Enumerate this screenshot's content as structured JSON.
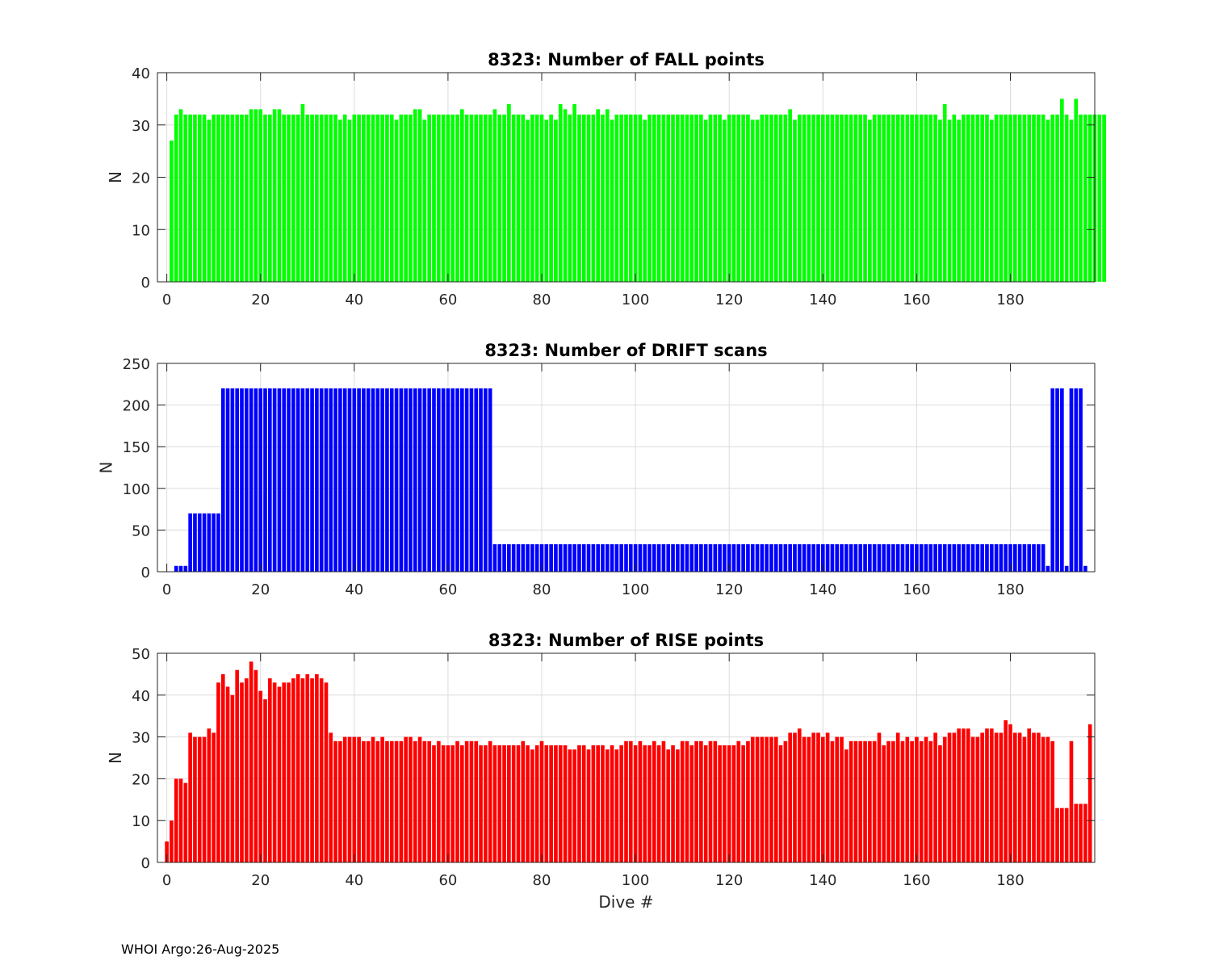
{
  "footer": "WHOI Argo:26-Aug-2025",
  "chart_data": [
    {
      "type": "bar",
      "title": "8323: Number of FALL points",
      "xlabel": "",
      "ylabel": "N",
      "xlim": [
        -2,
        198
      ],
      "ylim": [
        0,
        40
      ],
      "xticks": [
        0,
        20,
        40,
        60,
        80,
        100,
        120,
        140,
        160,
        180
      ],
      "yticks": [
        0,
        10,
        20,
        30,
        40
      ],
      "grid": true,
      "color": "#00ff00",
      "x_start": 1,
      "values": [
        27,
        32,
        33,
        32,
        32,
        32,
        32,
        32,
        31,
        32,
        32,
        32,
        32,
        32,
        32,
        32,
        32,
        33,
        33,
        33,
        32,
        32,
        33,
        33,
        32,
        32,
        32,
        32,
        34,
        32,
        32,
        32,
        32,
        32,
        32,
        32,
        31,
        32,
        31,
        32,
        32,
        32,
        32,
        32,
        32,
        32,
        32,
        32,
        31,
        32,
        32,
        32,
        33,
        33,
        31,
        32,
        32,
        32,
        32,
        32,
        32,
        32,
        33,
        32,
        32,
        32,
        32,
        32,
        32,
        33,
        32,
        32,
        34,
        32,
        32,
        32,
        31,
        32,
        32,
        32,
        31,
        32,
        31,
        34,
        33,
        32,
        34,
        32,
        32,
        32,
        32,
        33,
        32,
        33,
        31,
        32,
        32,
        32,
        32,
        32,
        32,
        31,
        32,
        32,
        32,
        32,
        32,
        32,
        32,
        32,
        32,
        32,
        32,
        32,
        31,
        32,
        32,
        32,
        31,
        32,
        32,
        32,
        32,
        32,
        31,
        31,
        32,
        32,
        32,
        32,
        32,
        32,
        33,
        31,
        32,
        32,
        32,
        32,
        32,
        32,
        32,
        32,
        32,
        32,
        32,
        32,
        32,
        32,
        32,
        31,
        32,
        32,
        32,
        32,
        32,
        32,
        32,
        32,
        32,
        32,
        32,
        32,
        32,
        32,
        31,
        34,
        31,
        32,
        31,
        32,
        32,
        32,
        32,
        32,
        32,
        31,
        32,
        32,
        32,
        32,
        32,
        32,
        32,
        32,
        32,
        32,
        32,
        31,
        32,
        32,
        35,
        32,
        31,
        35,
        32,
        32,
        32,
        32,
        32,
        32
      ]
    },
    {
      "type": "bar",
      "title": "8323: Number of DRIFT scans",
      "xlabel": "",
      "ylabel": "N",
      "xlim": [
        -2,
        198
      ],
      "ylim": [
        0,
        250
      ],
      "xticks": [
        0,
        20,
        40,
        60,
        80,
        100,
        120,
        140,
        160,
        180
      ],
      "yticks": [
        0,
        50,
        100,
        150,
        200,
        250
      ],
      "grid": true,
      "color": "#0000ff",
      "x_start": 1,
      "values": [
        0,
        7,
        7,
        7,
        70,
        70,
        70,
        70,
        70,
        70,
        70,
        220,
        220,
        220,
        220,
        220,
        220,
        220,
        220,
        220,
        220,
        220,
        220,
        220,
        220,
        220,
        220,
        220,
        220,
        220,
        220,
        220,
        220,
        220,
        220,
        220,
        220,
        220,
        220,
        220,
        220,
        220,
        220,
        220,
        220,
        220,
        220,
        220,
        220,
        220,
        220,
        220,
        220,
        220,
        220,
        220,
        220,
        220,
        220,
        220,
        220,
        220,
        220,
        220,
        220,
        220,
        220,
        220,
        220,
        33,
        33,
        33,
        33,
        33,
        33,
        33,
        33,
        33,
        33,
        33,
        33,
        33,
        33,
        33,
        33,
        33,
        33,
        33,
        33,
        33,
        33,
        33,
        33,
        33,
        33,
        33,
        33,
        33,
        33,
        33,
        33,
        33,
        33,
        33,
        33,
        33,
        33,
        33,
        33,
        33,
        33,
        33,
        33,
        33,
        33,
        33,
        33,
        33,
        33,
        33,
        33,
        33,
        33,
        33,
        33,
        33,
        33,
        33,
        33,
        33,
        33,
        33,
        33,
        33,
        33,
        33,
        33,
        33,
        33,
        33,
        33,
        33,
        33,
        33,
        33,
        33,
        33,
        33,
        33,
        33,
        33,
        33,
        33,
        33,
        33,
        33,
        33,
        33,
        33,
        33,
        33,
        33,
        33,
        33,
        33,
        33,
        33,
        33,
        33,
        33,
        33,
        33,
        33,
        33,
        33,
        33,
        33,
        33,
        33,
        33,
        33,
        33,
        33,
        33,
        33,
        33,
        33,
        7,
        220,
        220,
        220,
        7,
        220,
        220,
        220,
        7
      ]
    },
    {
      "type": "bar",
      "title": "8323: Number of RISE points",
      "xlabel": "Dive #",
      "ylabel": "N",
      "xlim": [
        -2,
        198
      ],
      "ylim": [
        0,
        50
      ],
      "xticks": [
        0,
        20,
        40,
        60,
        80,
        100,
        120,
        140,
        160,
        180
      ],
      "yticks": [
        0,
        10,
        20,
        30,
        40,
        50
      ],
      "grid": true,
      "color": "#ff0000",
      "x_start": 0,
      "values": [
        5,
        10,
        20,
        20,
        19,
        31,
        30,
        30,
        30,
        32,
        31,
        43,
        45,
        42,
        40,
        46,
        43,
        44,
        48,
        46,
        41,
        39,
        44,
        43,
        42,
        43,
        43,
        44,
        45,
        44,
        45,
        44,
        45,
        44,
        43,
        31,
        29,
        29,
        30,
        30,
        30,
        30,
        29,
        29,
        30,
        29,
        30,
        29,
        29,
        29,
        29,
        30,
        30,
        29,
        30,
        29,
        29,
        28,
        29,
        28,
        28,
        28,
        29,
        28,
        29,
        29,
        29,
        28,
        28,
        29,
        28,
        28,
        28,
        28,
        28,
        28,
        29,
        28,
        27,
        28,
        29,
        28,
        28,
        28,
        28,
        28,
        27,
        27,
        28,
        28,
        27,
        28,
        28,
        28,
        27,
        28,
        27,
        28,
        29,
        29,
        28,
        29,
        28,
        28,
        29,
        28,
        29,
        27,
        28,
        27,
        29,
        29,
        28,
        29,
        29,
        28,
        29,
        29,
        28,
        28,
        28,
        28,
        29,
        28,
        29,
        30,
        30,
        30,
        30,
        30,
        30,
        28,
        29,
        31,
        31,
        32,
        30,
        30,
        31,
        31,
        30,
        31,
        29,
        30,
        30,
        27,
        29,
        29,
        29,
        29,
        29,
        29,
        31,
        28,
        29,
        29,
        31,
        29,
        30,
        29,
        30,
        29,
        30,
        29,
        31,
        28,
        30,
        31,
        31,
        32,
        32,
        32,
        30,
        30,
        31,
        32,
        32,
        31,
        31,
        34,
        33,
        31,
        31,
        30,
        32,
        31,
        31,
        30,
        30,
        29,
        13,
        13,
        13,
        29,
        14,
        14,
        14,
        33
      ]
    }
  ]
}
